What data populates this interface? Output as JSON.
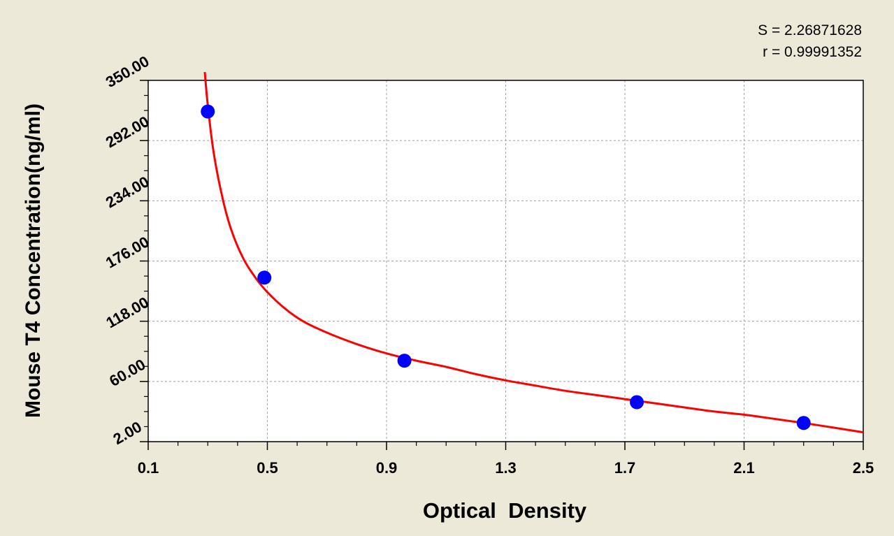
{
  "colors": {
    "background": "#ECE9D8",
    "plot_area": "#FFFFFF",
    "grid": "#A0A0A0",
    "curve": "#FF0000",
    "points": "#0000FF"
  },
  "stats": {
    "s_text": "S = 2.26871628",
    "r_text": "r = 0.99991352"
  },
  "chart_data": {
    "type": "scatter",
    "xlabel": "Optical  Density",
    "ylabel": "Mouse T4 Concentration(ng/ml)",
    "xlim": [
      0.1,
      2.5
    ],
    "ylim": [
      2.0,
      350.0
    ],
    "x_ticks": [
      "0.1",
      "0.5",
      "0.9",
      "1.3",
      "1.7",
      "2.1",
      "2.5"
    ],
    "y_ticks": [
      "2.00",
      "60.00",
      "118.00",
      "176.00",
      "234.00",
      "292.00",
      "350.00"
    ],
    "grid": true,
    "series": [
      {
        "kind": "points",
        "x": [
          0.3,
          0.49,
          0.96,
          1.74,
          2.3
        ],
        "y": [
          320.0,
          160.0,
          80.0,
          40.0,
          20.0
        ]
      },
      {
        "kind": "fitted-curve",
        "x": [
          0.29,
          0.3,
          0.32,
          0.35,
          0.38,
          0.42,
          0.46,
          0.5,
          0.56,
          0.62,
          0.7,
          0.8,
          0.9,
          1.0,
          1.1,
          1.2,
          1.3,
          1.4,
          1.5,
          1.6,
          1.7,
          1.8,
          1.9,
          2.0,
          2.1,
          2.2,
          2.3,
          2.4,
          2.5
        ],
        "y": [
          358.0,
          326.0,
          280.0,
          236.0,
          205.0,
          178.0,
          160.0,
          146.0,
          130.0,
          118.0,
          107.0,
          96.0,
          87.0,
          80.0,
          74.0,
          67.0,
          61.0,
          56.0,
          51.0,
          47.0,
          43.0,
          39.0,
          35.0,
          31.0,
          28.0,
          24.0,
          20.0,
          15.5,
          11.0
        ]
      }
    ]
  }
}
